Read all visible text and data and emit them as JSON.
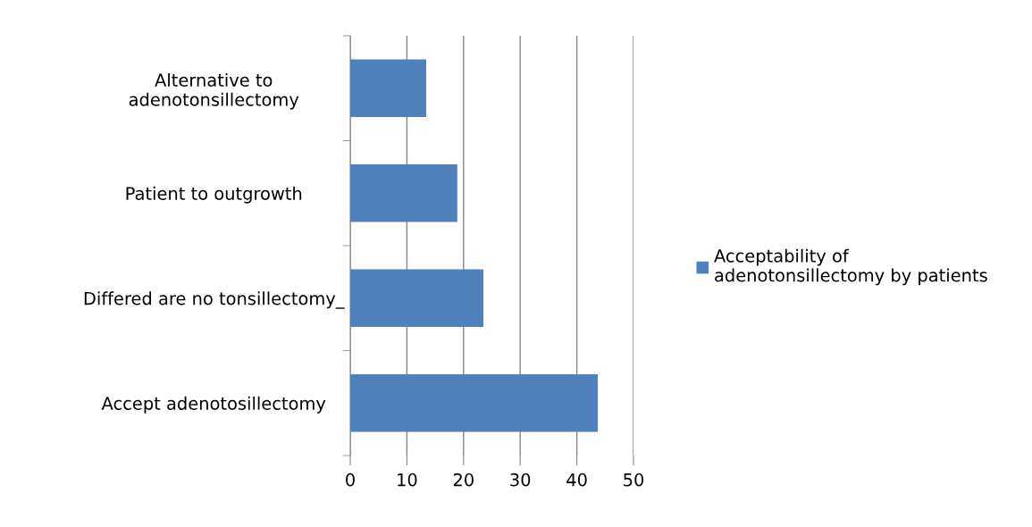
{
  "chart_data": {
    "type": "bar",
    "orientation": "horizontal",
    "categories": [
      "Alternative to\nadenotonsillectomy",
      "Patient to outgrowth",
      "Differed are no tonsillectomy_",
      "Accept adenotosillectomy"
    ],
    "series": [
      {
        "name": "Acceptability of\nadenotonsillectomy by patients",
        "color": "#4f81bd",
        "values": [
          13.4,
          18.9,
          23.5,
          43.7
        ]
      }
    ],
    "xlim": [
      0,
      50
    ],
    "xticks": [
      0,
      10,
      20,
      30,
      40,
      50
    ],
    "grid": "x",
    "legend": "right"
  }
}
